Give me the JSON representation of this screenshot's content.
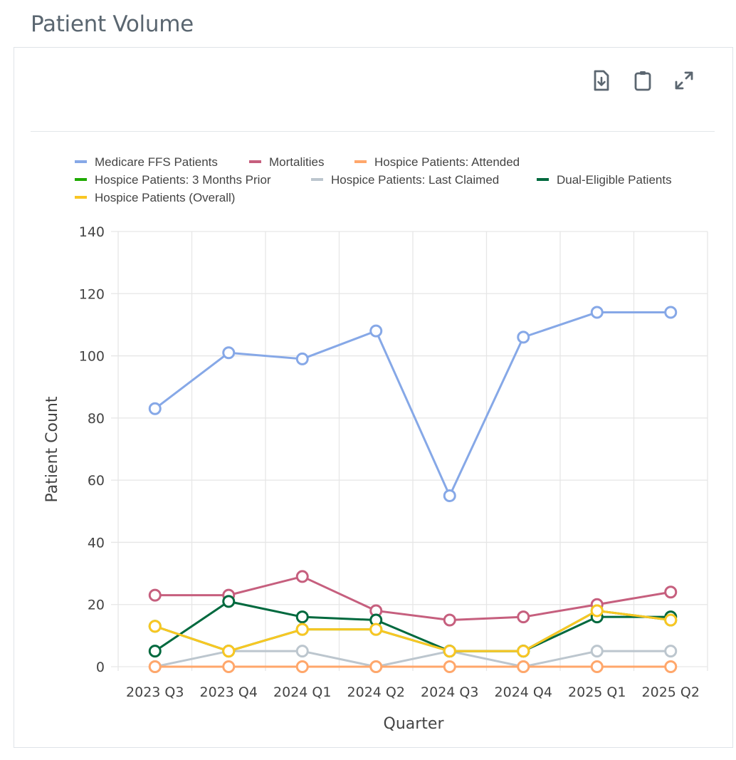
{
  "page": {
    "title": "Patient Volume"
  },
  "toolbar": {
    "buttons": [
      {
        "icon": "file-download-icon",
        "label": "Download"
      },
      {
        "icon": "clipboard-icon",
        "label": "Copy"
      },
      {
        "icon": "expand-icon",
        "label": "Expand"
      }
    ]
  },
  "chart_data": {
    "type": "line",
    "title": "Patient Volume",
    "xlabel": "Quarter",
    "ylabel": "Patient Count",
    "ylim": [
      0,
      140
    ],
    "yticks": [
      0,
      20,
      40,
      60,
      80,
      100,
      120,
      140
    ],
    "grid": true,
    "legend_position": "top-left",
    "categories": [
      "2023 Q3",
      "2023 Q4",
      "2024 Q1",
      "2024 Q2",
      "2024 Q3",
      "2024 Q4",
      "2025 Q1",
      "2025 Q2"
    ],
    "series": [
      {
        "name": "Medicare FFS Patients",
        "color": "#86a8e7",
        "values": [
          83,
          101,
          99,
          108,
          55,
          106,
          114,
          114
        ]
      },
      {
        "name": "Mortalities",
        "color": "#c65f7e",
        "values": [
          23,
          23,
          29,
          18,
          15,
          16,
          20,
          24
        ]
      },
      {
        "name": "Hospice Patients: Attended",
        "color": "#ffa76b",
        "values": [
          0,
          0,
          0,
          0,
          0,
          0,
          0,
          0
        ]
      },
      {
        "name": "Hospice Patients: 3 Months Prior",
        "color": "#1faa00",
        "values": [
          13,
          5,
          12,
          12,
          5,
          5,
          18,
          15
        ]
      },
      {
        "name": "Hospice Patients: Last Claimed",
        "color": "#bcc6ce",
        "values": [
          0,
          5,
          5,
          0,
          5,
          0,
          5,
          5
        ]
      },
      {
        "name": "Dual-Eligible Patients",
        "color": "#00693e",
        "values": [
          5,
          21,
          16,
          15,
          5,
          5,
          16,
          16
        ]
      },
      {
        "name": "Hospice Patients (Overall)",
        "color": "#f9c623",
        "values": [
          13,
          5,
          12,
          12,
          5,
          5,
          18,
          15
        ]
      }
    ],
    "draw_order": [
      4,
      2,
      0,
      1,
      3,
      5,
      6
    ]
  }
}
